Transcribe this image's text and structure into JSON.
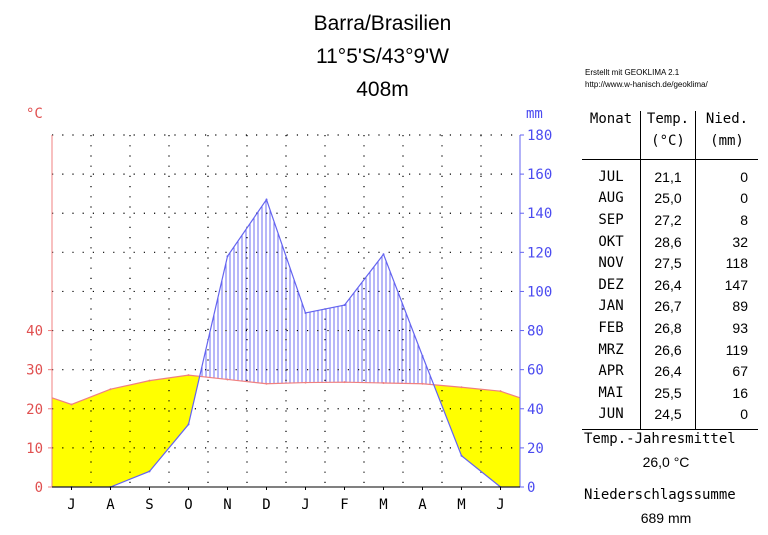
{
  "header": {
    "station": "Barra/Brasilien",
    "coordinates": "11°5'S/43°9'W",
    "elevation": "408m",
    "credit_line1": "Erstellt mit GEOKLIMA 2.1",
    "credit_line2": "http://www.w-hanisch.de/geoklima/"
  },
  "chart_data": {
    "type": "line",
    "title": "Barra/Brasilien",
    "left_axis": {
      "unit": "°C",
      "ticks": [
        0,
        10,
        20,
        30,
        40
      ],
      "ylim": [
        0,
        90
      ]
    },
    "right_axis": {
      "unit": "mm",
      "ticks": [
        0,
        20,
        40,
        60,
        80,
        100,
        120,
        140,
        160,
        180
      ],
      "ylim": [
        0,
        180
      ]
    },
    "categories": [
      "J",
      "A",
      "S",
      "O",
      "N",
      "D",
      "J",
      "F",
      "M",
      "A",
      "M",
      "J"
    ],
    "series": [
      {
        "name": "Temp.",
        "unit": "°C",
        "color": "#f08080",
        "values": [
          21.1,
          25.0,
          27.2,
          28.6,
          27.5,
          26.4,
          26.7,
          26.8,
          26.6,
          26.4,
          25.5,
          24.5
        ]
      },
      {
        "name": "Nied.",
        "unit": "mm",
        "color": "#6464f0",
        "values": [
          0,
          0,
          8,
          32,
          118,
          147,
          89,
          93,
          119,
          67,
          16,
          0
        ]
      }
    ],
    "grid": true,
    "fill_colors": {
      "arid": "#ffff00",
      "humid": "#4b4bf0"
    }
  },
  "table": {
    "headers": {
      "month": "Monat",
      "temp": "Temp.",
      "temp_unit": "(°C)",
      "prec": "Nied.",
      "prec_unit": "(mm)"
    },
    "rows": [
      {
        "month": "JUL",
        "temp": "21,1",
        "prec": "0"
      },
      {
        "month": "AUG",
        "temp": "25,0",
        "prec": "0"
      },
      {
        "month": "SEP",
        "temp": "27,2",
        "prec": "8"
      },
      {
        "month": "OKT",
        "temp": "28,6",
        "prec": "32"
      },
      {
        "month": "NOV",
        "temp": "27,5",
        "prec": "118"
      },
      {
        "month": "DEZ",
        "temp": "26,4",
        "prec": "147"
      },
      {
        "month": "JAN",
        "temp": "26,7",
        "prec": "89"
      },
      {
        "month": "FEB",
        "temp": "26,8",
        "prec": "93"
      },
      {
        "month": "MRZ",
        "temp": "26,6",
        "prec": "119"
      },
      {
        "month": "APR",
        "temp": "26,4",
        "prec": "67"
      },
      {
        "month": "MAI",
        "temp": "25,5",
        "prec": "16"
      },
      {
        "month": "JUN",
        "temp": "24,5",
        "prec": "0"
      }
    ]
  },
  "summary": {
    "temp_label": "Temp.-Jahresmittel",
    "temp_value": "26,0 °C",
    "prec_label": "Niederschlagssumme",
    "prec_value": "689 mm"
  }
}
